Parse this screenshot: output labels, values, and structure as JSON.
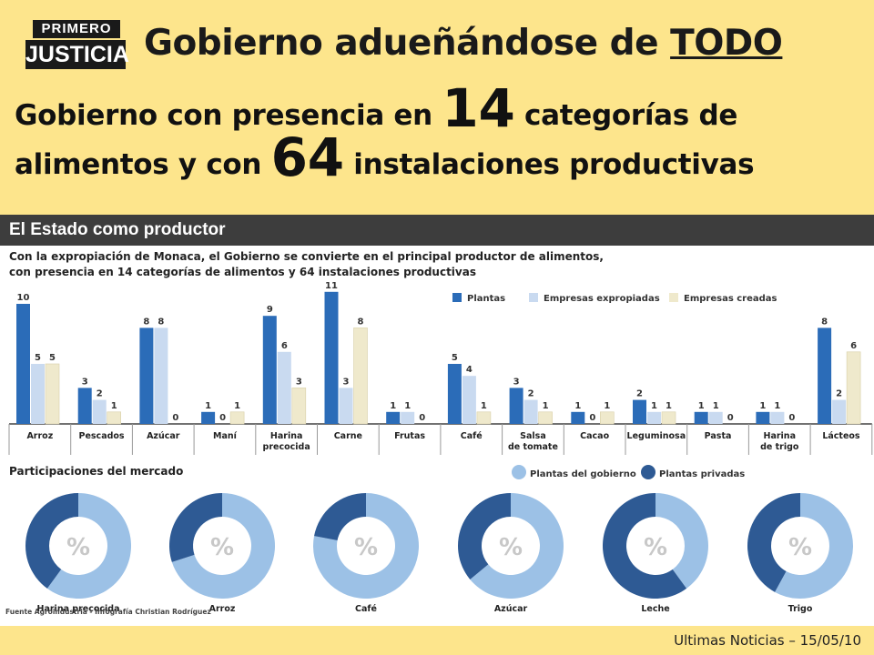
{
  "logo": {
    "line1": "PRIMERO",
    "line2": "JUSTICIA"
  },
  "title": {
    "prefix": "Gobierno adueñándose de ",
    "emph": "TODO"
  },
  "subtitle": {
    "part1": "Gobierno con presencia en ",
    "n1": "14",
    "part2": " categorías de alimentos y con ",
    "n2": "64",
    "part3": " instalaciones productivas"
  },
  "infographic": {
    "header": "El Estado como productor",
    "desc_line1": "Con la expropiación de Monaca, el Gobierno se convierte en el principal productor de alimentos,",
    "desc_line2": "con presencia en 14 categorías de alimentos y 64 instalaciones productivas",
    "market_title": "Participaciones del mercado",
    "source": "Fuente Agroindustria - Infografía Christian Rodríguez"
  },
  "colors": {
    "plantas": "#2b6cb8",
    "expropiadas": "#c9daf0",
    "creadas": "#efe9cc",
    "gobierno": "#9cc1e6",
    "privadas": "#2e5a94"
  },
  "chart_data": [
    {
      "type": "bar",
      "categories": [
        "Arroz",
        "Pescados",
        "Azúcar",
        "Maní",
        "Harina precocida",
        "Carne",
        "Frutas",
        "Café",
        "Salsa de tomate",
        "Cacao",
        "Leguminosa",
        "Pasta",
        "Harina de trigo",
        "Lácteos"
      ],
      "series": [
        {
          "name": "Plantas",
          "values": [
            10,
            3,
            8,
            1,
            9,
            11,
            1,
            5,
            3,
            1,
            2,
            1,
            1,
            8
          ]
        },
        {
          "name": "Empresas expropiadas",
          "values": [
            5,
            2,
            8,
            0,
            6,
            3,
            1,
            4,
            2,
            0,
            1,
            1,
            1,
            2
          ]
        },
        {
          "name": "Empresas creadas",
          "values": [
            5,
            1,
            0,
            1,
            3,
            8,
            0,
            1,
            1,
            1,
            1,
            0,
            0,
            6
          ]
        }
      ],
      "legend": "top-right"
    },
    {
      "type": "pie",
      "title": "Participaciones del mercado",
      "legend": [
        "Plantas del gobierno",
        "Plantas privadas"
      ],
      "items": [
        {
          "label": "Harina precocida",
          "privadas_share": 0.4
        },
        {
          "label": "Arroz",
          "privadas_share": 0.3
        },
        {
          "label": "Café",
          "privadas_share": 0.22
        },
        {
          "label": "Azúcar",
          "privadas_share": 0.36
        },
        {
          "label": "Leche",
          "privadas_share": 0.6
        },
        {
          "label": "Trigo",
          "privadas_share": 0.42
        }
      ]
    }
  ],
  "footer": "Ultimas Noticias – 15/05/10"
}
